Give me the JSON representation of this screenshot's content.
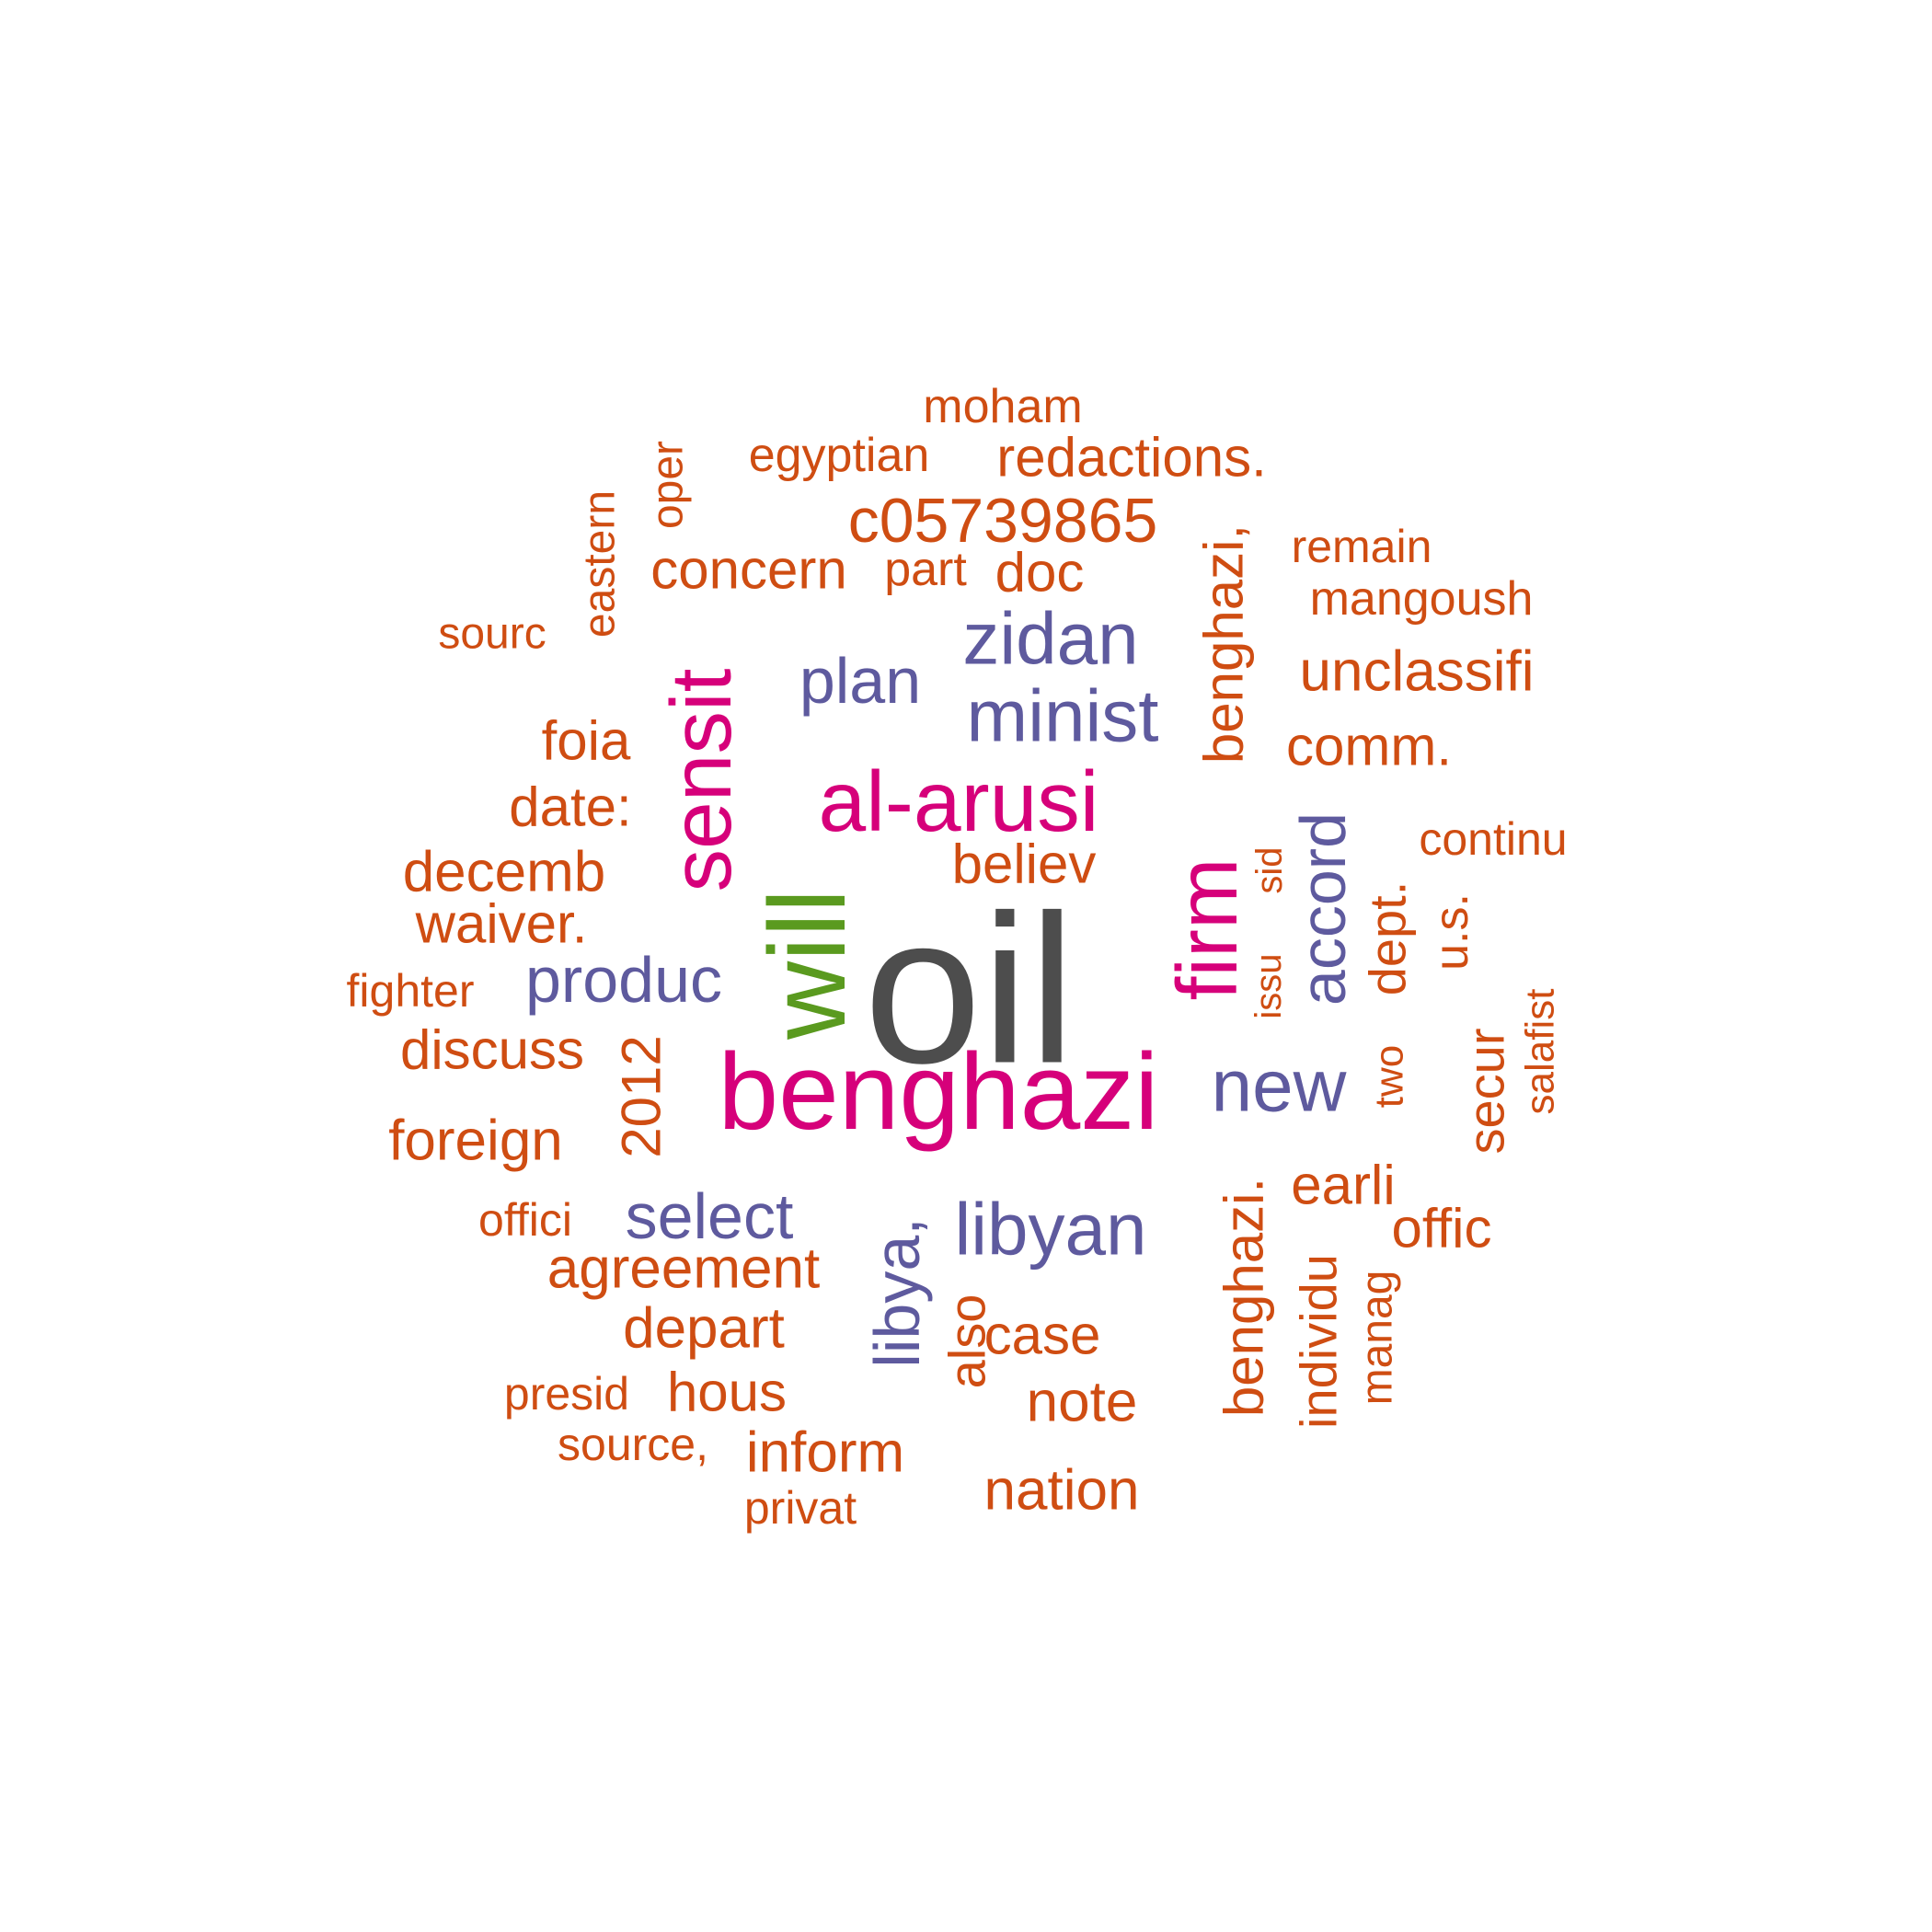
{
  "colors": {
    "gray": "#4d4d4d",
    "green": "#5a9a1f",
    "magenta": "#d6007a",
    "purple": "#5e5a9e",
    "orange": "#cf4d12"
  },
  "words": [
    {
      "text": "oil",
      "color": "gray"
    },
    {
      "text": "benghazi",
      "color": "magenta"
    },
    {
      "text": "will",
      "color": "green"
    },
    {
      "text": "al-arusi",
      "color": "magenta"
    },
    {
      "text": "sensit",
      "color": "magenta"
    },
    {
      "text": "firm",
      "color": "magenta"
    },
    {
      "text": "zidan",
      "color": "purple"
    },
    {
      "text": "minist",
      "color": "purple"
    },
    {
      "text": "libyan",
      "color": "purple"
    },
    {
      "text": "new",
      "color": "purple"
    },
    {
      "text": "plan",
      "color": "purple"
    },
    {
      "text": "produc",
      "color": "purple"
    },
    {
      "text": "select",
      "color": "purple"
    },
    {
      "text": "libya,",
      "color": "purple"
    },
    {
      "text": "accord",
      "color": "purple"
    },
    {
      "text": "moham",
      "color": "orange"
    },
    {
      "text": "egyptian",
      "color": "orange"
    },
    {
      "text": "redactions.",
      "color": "orange"
    },
    {
      "text": "c05739865",
      "color": "orange"
    },
    {
      "text": "concern",
      "color": "orange"
    },
    {
      "text": "part",
      "color": "orange"
    },
    {
      "text": "doc",
      "color": "orange"
    },
    {
      "text": "remain",
      "color": "orange"
    },
    {
      "text": "mangoush",
      "color": "orange"
    },
    {
      "text": "unclassifi",
      "color": "orange"
    },
    {
      "text": "comm.",
      "color": "orange"
    },
    {
      "text": "continu",
      "color": "orange"
    },
    {
      "text": "sourc",
      "color": "orange"
    },
    {
      "text": "foia",
      "color": "orange"
    },
    {
      "text": "date:",
      "color": "orange"
    },
    {
      "text": "decemb",
      "color": "orange"
    },
    {
      "text": "waiver.",
      "color": "orange"
    },
    {
      "text": "believ",
      "color": "orange"
    },
    {
      "text": "fighter",
      "color": "orange"
    },
    {
      "text": "discuss",
      "color": "orange"
    },
    {
      "text": "foreign",
      "color": "orange"
    },
    {
      "text": "offici",
      "color": "orange"
    },
    {
      "text": "agreement",
      "color": "orange"
    },
    {
      "text": "depart",
      "color": "orange"
    },
    {
      "text": "presid",
      "color": "orange"
    },
    {
      "text": "hous",
      "color": "orange"
    },
    {
      "text": "source,",
      "color": "orange"
    },
    {
      "text": "inform",
      "color": "orange"
    },
    {
      "text": "privat",
      "color": "orange"
    },
    {
      "text": "case",
      "color": "orange"
    },
    {
      "text": "note",
      "color": "orange"
    },
    {
      "text": "nation",
      "color": "orange"
    },
    {
      "text": "earli",
      "color": "orange"
    },
    {
      "text": "offic",
      "color": "orange"
    },
    {
      "text": "eastern",
      "color": "orange"
    },
    {
      "text": "oper",
      "color": "orange"
    },
    {
      "text": "2012",
      "color": "orange"
    },
    {
      "text": "also",
      "color": "orange"
    },
    {
      "text": "benghazi,",
      "color": "orange"
    },
    {
      "text": "sid",
      "color": "orange"
    },
    {
      "text": "issu",
      "color": "orange"
    },
    {
      "text": "dept.",
      "color": "orange"
    },
    {
      "text": "u.s.",
      "color": "orange"
    },
    {
      "text": "two",
      "color": "orange"
    },
    {
      "text": "secur",
      "color": "orange"
    },
    {
      "text": "salafist",
      "color": "orange"
    },
    {
      "text": "benghazi.",
      "color": "orange"
    },
    {
      "text": "individu",
      "color": "orange"
    },
    {
      "text": "manag",
      "color": "orange"
    }
  ]
}
